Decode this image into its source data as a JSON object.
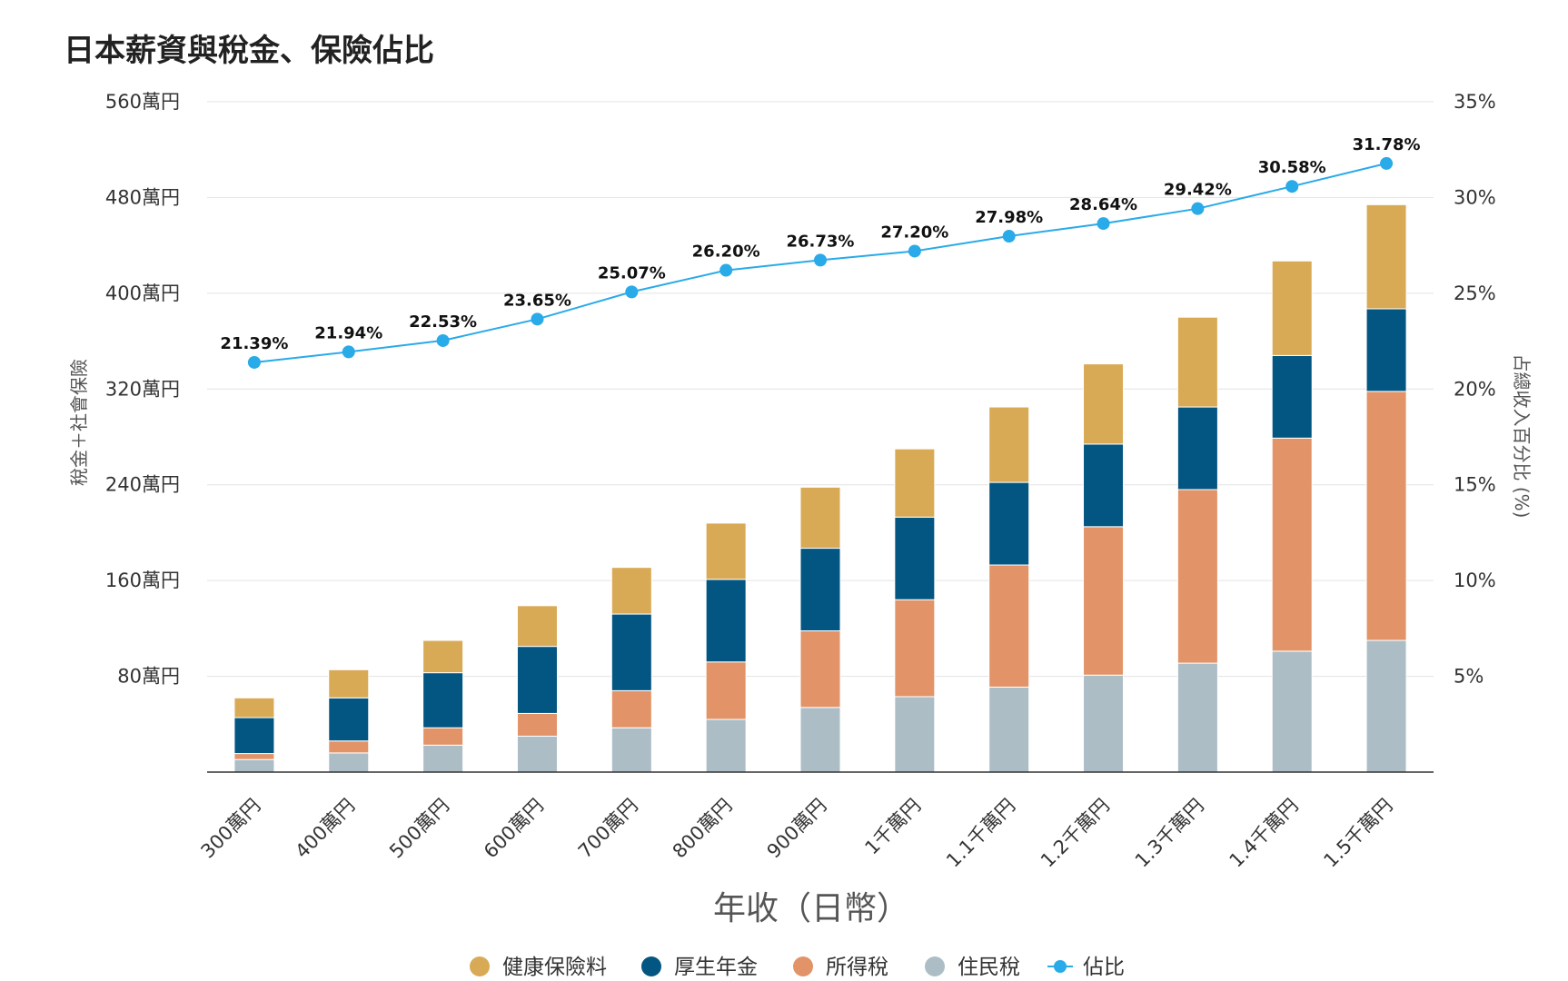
{
  "chart_data": {
    "type": "bar",
    "stacked": true,
    "title": "日本薪資與稅金、保險佔比",
    "xlabel": "年收（日幣）",
    "ylabel": "稅金＋社會保險",
    "y2label": "占總收入百分比 (%)",
    "categories": [
      "300萬円",
      "400萬円",
      "500萬円",
      "600萬円",
      "700萬円",
      "800萬円",
      "900萬円",
      "1千萬円",
      "1.1千萬円",
      "1.2千萬円",
      "1.3千萬円",
      "1.4千萬円",
      "1.5千萬円"
    ],
    "series": [
      {
        "name": "住民稅",
        "color": "#adbdc6",
        "values": [
          10.5,
          16,
          22.5,
          30,
          37,
          44,
          54,
          63,
          71,
          81,
          91,
          101,
          110
        ]
      },
      {
        "name": "所得稅",
        "color": "#e29367",
        "values": [
          5,
          10,
          14.5,
          19,
          31,
          48,
          64,
          81,
          102,
          124,
          145,
          178,
          208
        ]
      },
      {
        "name": "厚生年金",
        "color": "#035582",
        "values": [
          30,
          36,
          46,
          56,
          64,
          69,
          69,
          69,
          69,
          69,
          69,
          69,
          69
        ]
      },
      {
        "name": "健康保險料",
        "color": "#d9aa55",
        "values": [
          16.5,
          23.5,
          27,
          34,
          39,
          47,
          51,
          57,
          63,
          67,
          75,
          79,
          87
        ]
      }
    ],
    "line": {
      "name": "佔比",
      "axis": "right",
      "color": "#29aae9",
      "values": [
        21.39,
        21.94,
        22.53,
        23.65,
        25.07,
        26.2,
        26.73,
        27.2,
        27.98,
        28.64,
        29.42,
        30.58,
        31.78
      ]
    },
    "point_labels": [
      "21.39%",
      "21.94%",
      "22.53%",
      "23.65%",
      "25.07%",
      "26.20%",
      "26.73%",
      "27.20%",
      "27.98%",
      "28.64%",
      "29.42%",
      "30.58%",
      "31.78%"
    ],
    "ylim": [
      0,
      560
    ],
    "y2lim": [
      0,
      35
    ],
    "y_ticks": [
      {
        "value": 80,
        "label": "80萬円"
      },
      {
        "value": 160,
        "label": "160萬円"
      },
      {
        "value": 240,
        "label": "240萬円"
      },
      {
        "value": 320,
        "label": "320萬円"
      },
      {
        "value": 400,
        "label": "400萬円"
      },
      {
        "value": 480,
        "label": "480萬円"
      },
      {
        "value": 560,
        "label": "560萬円"
      }
    ],
    "y2_ticks": [
      {
        "value": 5,
        "label": "5%"
      },
      {
        "value": 10,
        "label": "10%"
      },
      {
        "value": 15,
        "label": "15%"
      },
      {
        "value": 20,
        "label": "20%"
      },
      {
        "value": 25,
        "label": "25%"
      },
      {
        "value": 30,
        "label": "30%"
      },
      {
        "value": 35,
        "label": "35%"
      }
    ],
    "grid": true,
    "legend_position": "bottom",
    "legend": [
      {
        "name": "健康保險料",
        "color": "#d9aa55",
        "kind": "dot"
      },
      {
        "name": "厚生年金",
        "color": "#035582",
        "kind": "dot"
      },
      {
        "name": "所得稅",
        "color": "#e29367",
        "kind": "dot"
      },
      {
        "name": "住民稅",
        "color": "#adbdc6",
        "kind": "dot"
      },
      {
        "name": "佔比",
        "color": "#29aae9",
        "kind": "line"
      }
    ]
  }
}
